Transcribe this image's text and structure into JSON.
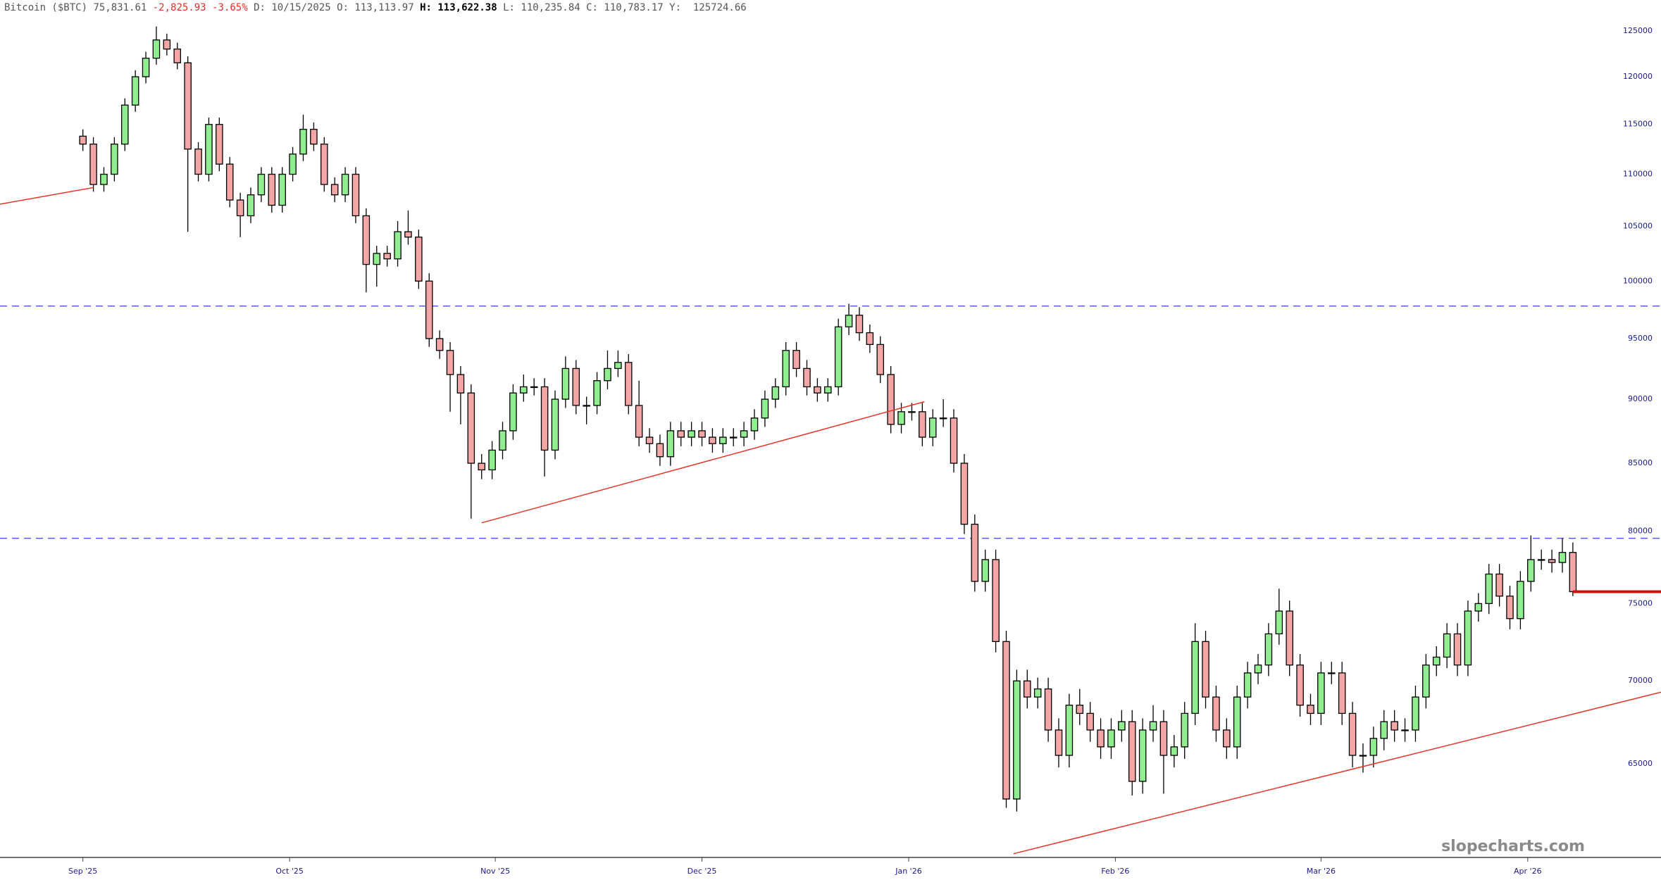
{
  "header": {
    "symbol": "Bitcoin ($BTC)",
    "last": "75,831.61",
    "change": "-2,825.93",
    "change_pct": "-3.65%",
    "date": "D: 10/15/2025",
    "open": "O: 113,113.97",
    "high": "H: 113,622.38",
    "low": "L: 110,235.84",
    "close": "C: 110,783.17",
    "extra": "Y:  125724.66"
  },
  "chart_data": {
    "type": "candlestick",
    "log_y": true,
    "xlim": [
      -7.9,
      150.4
    ],
    "ylim": [
      59800,
      128500
    ],
    "yticks": [
      65000,
      70000,
      75000,
      80000,
      85000,
      90000,
      95000,
      100000,
      105000,
      110000,
      115000,
      120000,
      125000
    ],
    "xticks": [
      {
        "value": 0,
        "label": "Sep '25"
      },
      {
        "value": 19.7,
        "label": "Oct '25"
      },
      {
        "value": 39.3,
        "label": "Nov '25"
      },
      {
        "value": 59,
        "label": "Dec '25"
      },
      {
        "value": 78.7,
        "label": "Jan '26"
      },
      {
        "value": 98.4,
        "label": "Feb '26"
      },
      {
        "value": 118,
        "label": "Mar '26"
      },
      {
        "value": 137.7,
        "label": "Apr '26"
      }
    ],
    "up_color": "#90ee90",
    "down_color": "#f4a6a6",
    "open": [
      113800,
      113000,
      109000,
      110000,
      113000,
      117000,
      120000,
      122000,
      124000,
      123000,
      121500,
      112500,
      110000,
      115000,
      111000,
      107500,
      106000,
      108000,
      110000,
      107000,
      110000,
      112000,
      114500,
      113000,
      109000,
      108000,
      110000,
      106000,
      101500,
      102500,
      102000,
      104500,
      104000,
      100000,
      95000,
      94000,
      92000,
      90500,
      85000,
      84500,
      86000,
      87500,
      90500,
      91000,
      91000,
      86000,
      90000,
      92500,
      89500,
      89500,
      91500,
      92500,
      93000,
      89500,
      87000,
      86500,
      85500,
      87500,
      87000,
      87500,
      87000,
      86500,
      87000,
      87000,
      87500,
      88500,
      90000,
      91000,
      94000,
      92500,
      91000,
      90500,
      91000,
      96000,
      97000,
      95500,
      94500,
      92000,
      88000,
      89000,
      89000,
      87000,
      88500,
      88500,
      85000,
      80500,
      76500,
      78000,
      72500,
      63000,
      70000,
      69000,
      69500,
      67000,
      65500,
      68500,
      68000,
      67000,
      66000,
      67000,
      67500,
      64000,
      67000,
      67500,
      65500,
      66000,
      68000,
      72500,
      69000,
      67000,
      66000,
      69000,
      70500,
      71000,
      73000,
      74500,
      71000,
      68500,
      68000,
      70500,
      70500,
      68000,
      65500,
      65500,
      66500,
      67500,
      67000,
      67000,
      69000,
      71000,
      71500,
      73000,
      71000,
      74500,
      75000,
      77000,
      75500,
      74000,
      76500,
      78000,
      78000,
      77800,
      78500
    ],
    "high": [
      114500,
      113700,
      110700,
      113700,
      117700,
      120700,
      122700,
      125500,
      124700,
      123700,
      122200,
      113200,
      115700,
      115700,
      111700,
      108200,
      108700,
      110700,
      110700,
      110700,
      112700,
      116000,
      115200,
      113700,
      109700,
      110700,
      110700,
      106700,
      103200,
      103200,
      105500,
      106500,
      104700,
      100700,
      95700,
      94700,
      92700,
      91200,
      85700,
      86700,
      88200,
      91200,
      92000,
      91700,
      91700,
      90700,
      93500,
      93200,
      90200,
      92200,
      94000,
      94000,
      93700,
      91500,
      87700,
      87200,
      88200,
      88200,
      88200,
      88200,
      87700,
      87700,
      87700,
      88200,
      89200,
      90700,
      91700,
      94700,
      94700,
      93200,
      91700,
      91700,
      96700,
      98000,
      97700,
      96200,
      95200,
      92700,
      89700,
      89700,
      89700,
      89200,
      90000,
      89200,
      85700,
      81200,
      78700,
      78700,
      73200,
      70700,
      70700,
      70200,
      70200,
      67700,
      69200,
      69500,
      68700,
      67700,
      67700,
      68200,
      68200,
      67700,
      68500,
      68200,
      66700,
      68700,
      73700,
      73200,
      69700,
      67700,
      69700,
      71200,
      71700,
      73700,
      76000,
      75200,
      71700,
      69200,
      71200,
      71200,
      71200,
      68700,
      66200,
      67200,
      68200,
      68200,
      67700,
      69700,
      71700,
      72200,
      73700,
      73700,
      75200,
      75700,
      77700,
      77700,
      76200,
      77200,
      79700,
      78700,
      78700,
      79500,
      79200
    ],
    "low": [
      112300,
      108300,
      108300,
      109300,
      112300,
      116300,
      119300,
      121300,
      122300,
      120800,
      104500,
      109300,
      109300,
      110300,
      106800,
      104000,
      105300,
      107300,
      106300,
      106300,
      109300,
      111300,
      112300,
      108300,
      107300,
      107300,
      105300,
      99000,
      99500,
      101300,
      101300,
      103300,
      99300,
      94300,
      93300,
      89000,
      88000,
      80900,
      83800,
      83800,
      85300,
      86800,
      89800,
      90300,
      84000,
      85300,
      89300,
      88800,
      88000,
      88800,
      90800,
      91800,
      88800,
      86300,
      85800,
      84800,
      84800,
      86300,
      86300,
      86300,
      85800,
      85800,
      86300,
      86300,
      86800,
      87800,
      89300,
      90300,
      91800,
      90300,
      89800,
      89800,
      90300,
      95300,
      94800,
      93800,
      91300,
      87300,
      87300,
      88300,
      86300,
      86300,
      87800,
      84300,
      79800,
      75800,
      75800,
      71800,
      62500,
      62300,
      68300,
      68300,
      66300,
      64800,
      64800,
      67300,
      66300,
      65300,
      65300,
      66300,
      63200,
      63300,
      66300,
      63300,
      64800,
      65300,
      67300,
      68300,
      66300,
      65300,
      65300,
      68300,
      69800,
      70300,
      72300,
      70300,
      67800,
      67300,
      67300,
      69800,
      67300,
      64800,
      64500,
      64800,
      65800,
      66300,
      66300,
      66300,
      68300,
      70300,
      70800,
      70300,
      70300,
      73800,
      74300,
      74800,
      73300,
      73300,
      75800,
      77300,
      77100,
      77100,
      75500
    ],
    "close": [
      113000,
      109000,
      110000,
      113000,
      117000,
      120000,
      122000,
      124000,
      123000,
      121500,
      112500,
      110000,
      115000,
      111000,
      107500,
      106000,
      108000,
      110000,
      107000,
      110000,
      112000,
      114500,
      113000,
      109000,
      108000,
      110000,
      106000,
      101500,
      102500,
      102000,
      104500,
      104000,
      100000,
      95000,
      94000,
      92000,
      90500,
      85000,
      84500,
      86000,
      87500,
      90500,
      91000,
      91000,
      86000,
      90000,
      92500,
      89500,
      89500,
      91500,
      92500,
      93000,
      89500,
      87000,
      86500,
      85500,
      87500,
      87000,
      87500,
      87000,
      86500,
      87000,
      87000,
      87500,
      88500,
      90000,
      91000,
      94000,
      92500,
      91000,
      90500,
      91000,
      96000,
      97000,
      95500,
      94500,
      92000,
      88000,
      89000,
      89000,
      87000,
      88500,
      88500,
      85000,
      80500,
      76500,
      78000,
      72500,
      63000,
      70000,
      69000,
      69500,
      67000,
      65500,
      68500,
      68000,
      67000,
      66000,
      67000,
      67500,
      64000,
      67000,
      67500,
      65500,
      66000,
      68000,
      72500,
      69000,
      67000,
      66000,
      69000,
      70500,
      71000,
      73000,
      74500,
      71000,
      68500,
      68000,
      70500,
      70500,
      68000,
      65500,
      65500,
      66500,
      67500,
      67000,
      67000,
      69000,
      71000,
      71500,
      73000,
      71000,
      74500,
      75000,
      77000,
      75500,
      74000,
      76500,
      78000,
      78000,
      77800,
      78500,
      75800
    ],
    "hlines": [
      {
        "value": 97800,
        "color": "#5b5bf0"
      },
      {
        "value": 79500,
        "color": "#5b5bf0"
      }
    ],
    "trendlines": [
      {
        "x": [
          -7.9,
          1
        ],
        "y": [
          107100,
          108700
        ],
        "color": "#e8352a",
        "width": 1.5
      },
      {
        "x": [
          38,
          80.2
        ],
        "y": [
          80600,
          89800
        ],
        "color": "#e8352a",
        "width": 1.5
      },
      {
        "x": [
          88.7,
          150.4
        ],
        "y": [
          60000,
          69300
        ],
        "color": "#e8352a",
        "width": 1.5
      },
      {
        "x": [
          142,
          150.4
        ],
        "y": [
          75800,
          75800
        ],
        "color": "#d01010",
        "width": 4
      }
    ],
    "watermark": "slopecharts.com"
  }
}
